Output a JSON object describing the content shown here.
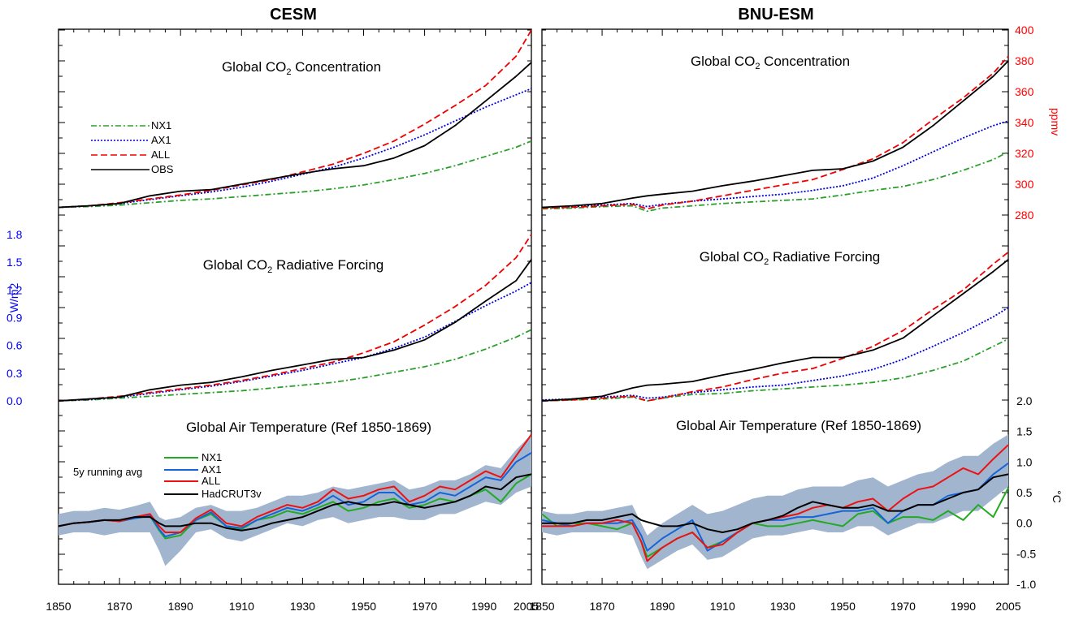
{
  "figure": {
    "column_titles": [
      "CESM",
      "BNU-ESM"
    ],
    "panel_titles": {
      "co2_prefix": "Global CO",
      "co2_sub": "2",
      "co2_suffix": " Concentration",
      "rf_prefix": "Global CO",
      "rf_sub": "2",
      "rf_suffix": " Radiative Forcing",
      "temp": "Global Air Temperature (Ref 1850-1869)"
    },
    "axis_labels": {
      "co2": "ppmv",
      "rf": "W/m2",
      "temp": "°C"
    },
    "x_ticks": [
      "1850",
      "1870",
      "1890",
      "1910",
      "1930",
      "1950",
      "1970",
      "1990",
      "2005"
    ],
    "co2_ticks": [
      "280",
      "300",
      "320",
      "340",
      "360",
      "380",
      "400"
    ],
    "rf_ticks": [
      "0.0",
      "0.3",
      "0.6",
      "0.9",
      "1.2",
      "1.5",
      "1.8"
    ],
    "temp_ticks": [
      "-1.0",
      "-0.5",
      "0.0",
      "0.5",
      "1.0",
      "1.5",
      "2.0"
    ],
    "legend_top": [
      "NX1",
      "AX1",
      "ALL",
      "OBS"
    ],
    "legend_temp": {
      "note": "5y running avg",
      "items": [
        "NX1",
        "AX1",
        "ALL",
        "HadCRUT3v"
      ]
    },
    "colors": {
      "co2_axis": "#ff0000",
      "rf_axis": "#0000ff",
      "band": "#a2b5cf",
      "NX1_top": "#2aa02a",
      "AX1_top": "#0000dd",
      "ALL_top": "#ee0000",
      "OBS_top": "#000000",
      "NX1_temp": "#22aa22",
      "AX1_temp": "#1565d8",
      "ALL_temp": "#ee1111",
      "Had_temp": "#000000"
    }
  },
  "chart_data": [
    {
      "type": "line",
      "model": "CESM",
      "variable": "Global CO2 Concentration",
      "units": "ppmv",
      "x": [
        1850,
        1860,
        1870,
        1880,
        1890,
        1900,
        1910,
        1920,
        1930,
        1940,
        1950,
        1960,
        1970,
        1980,
        1990,
        2000,
        2005
      ],
      "ylim": [
        266,
        400
      ],
      "series": [
        {
          "name": "NX1",
          "values": [
            285,
            285.5,
            286.5,
            288,
            289.5,
            290.5,
            292,
            293.5,
            295,
            297,
            299.5,
            303,
            307,
            312,
            318,
            324,
            328
          ]
        },
        {
          "name": "AX1",
          "values": [
            285,
            286,
            287.5,
            290,
            292.5,
            295,
            298,
            302,
            306.5,
            311,
            317,
            324,
            332,
            341,
            350,
            358,
            362
          ]
        },
        {
          "name": "ALL",
          "values": [
            285,
            286,
            288,
            290.5,
            293,
            296,
            299.5,
            303,
            308,
            313,
            320,
            328,
            339,
            351,
            364,
            383,
            400
          ]
        },
        {
          "name": "OBS",
          "values": [
            285,
            286,
            287.5,
            292.5,
            295.5,
            296.5,
            300,
            303.5,
            307,
            310,
            312,
            317,
            325,
            338,
            354,
            370,
            379
          ]
        }
      ]
    },
    {
      "type": "line",
      "model": "BNU-ESM",
      "variable": "Global CO2 Concentration",
      "units": "ppmv",
      "x": [
        1850,
        1860,
        1870,
        1880,
        1885,
        1890,
        1900,
        1910,
        1920,
        1930,
        1940,
        1950,
        1960,
        1970,
        1980,
        1990,
        2000,
        2005
      ],
      "ylim": [
        266,
        400
      ],
      "series": [
        {
          "name": "NX1",
          "values": [
            284,
            284.5,
            285.5,
            286,
            282.5,
            284.5,
            286,
            287.5,
            288.5,
            289.5,
            290.5,
            293,
            296,
            298.5,
            303,
            309,
            316,
            321
          ]
        },
        {
          "name": "AX1",
          "values": [
            285,
            285.5,
            286.5,
            287.5,
            285.5,
            287,
            289,
            290.5,
            292,
            293.5,
            296,
            299,
            304,
            312,
            321,
            330,
            338,
            341
          ]
        },
        {
          "name": "ALL",
          "values": [
            284.5,
            285,
            286,
            287,
            284,
            286.5,
            289,
            292.5,
            296,
            299.5,
            303,
            309.5,
            316.5,
            327,
            342,
            356,
            372,
            383
          ]
        },
        {
          "name": "OBS",
          "values": [
            285,
            286,
            287.5,
            291,
            292.5,
            293.5,
            295.5,
            299,
            302,
            305.5,
            309,
            310,
            315,
            324,
            338,
            354,
            370,
            380
          ]
        }
      ]
    },
    {
      "type": "line",
      "model": "CESM",
      "variable": "Global CO2 Radiative Forcing",
      "units": "W/m2",
      "x": [
        1850,
        1860,
        1870,
        1880,
        1890,
        1900,
        1910,
        1920,
        1930,
        1940,
        1950,
        1960,
        1970,
        1980,
        1990,
        2000,
        2005
      ],
      "ylim": [
        0,
        1.8
      ],
      "series": [
        {
          "name": "NX1",
          "values": [
            0,
            0.01,
            0.03,
            0.05,
            0.07,
            0.09,
            0.11,
            0.14,
            0.17,
            0.2,
            0.25,
            0.31,
            0.37,
            0.45,
            0.56,
            0.69,
            0.77
          ]
        },
        {
          "name": "AX1",
          "values": [
            0,
            0.015,
            0.04,
            0.08,
            0.12,
            0.16,
            0.21,
            0.27,
            0.33,
            0.4,
            0.47,
            0.57,
            0.69,
            0.86,
            1.03,
            1.19,
            1.28
          ]
        },
        {
          "name": "ALL",
          "values": [
            0,
            0.02,
            0.05,
            0.09,
            0.13,
            0.17,
            0.22,
            0.28,
            0.35,
            0.42,
            0.52,
            0.64,
            0.82,
            1.02,
            1.25,
            1.55,
            1.8
          ]
        },
        {
          "name": "OBS",
          "values": [
            0,
            0.02,
            0.04,
            0.12,
            0.17,
            0.2,
            0.26,
            0.33,
            0.39,
            0.45,
            0.47,
            0.55,
            0.66,
            0.85,
            1.08,
            1.3,
            1.53
          ]
        }
      ]
    },
    {
      "type": "line",
      "model": "BNU-ESM",
      "variable": "Global CO2 Radiative Forcing",
      "units": "W/m2",
      "x": [
        1850,
        1860,
        1870,
        1880,
        1885,
        1890,
        1900,
        1910,
        1920,
        1930,
        1940,
        1950,
        1960,
        1970,
        1980,
        1990,
        2000,
        2005
      ],
      "ylim": [
        0,
        1.8
      ],
      "series": [
        {
          "name": "NX1",
          "values": [
            0,
            0.01,
            0.02,
            0.04,
            0.0,
            0.03,
            0.07,
            0.08,
            0.11,
            0.13,
            0.15,
            0.17,
            0.2,
            0.25,
            0.33,
            0.43,
            0.59,
            0.67
          ]
        },
        {
          "name": "AX1",
          "values": [
            0.01,
            0.02,
            0.04,
            0.06,
            0.03,
            0.04,
            0.09,
            0.12,
            0.15,
            0.17,
            0.22,
            0.27,
            0.34,
            0.45,
            0.59,
            0.74,
            0.91,
            1.01
          ]
        },
        {
          "name": "ALL",
          "values": [
            0,
            0.01,
            0.03,
            0.05,
            0.0,
            0.03,
            0.1,
            0.15,
            0.23,
            0.3,
            0.35,
            0.46,
            0.59,
            0.76,
            0.99,
            1.2,
            1.48,
            1.61
          ]
        },
        {
          "name": "OBS",
          "values": [
            0,
            0.02,
            0.05,
            0.14,
            0.17,
            0.18,
            0.21,
            0.28,
            0.34,
            0.41,
            0.47,
            0.47,
            0.55,
            0.68,
            0.92,
            1.16,
            1.4,
            1.53
          ]
        }
      ]
    },
    {
      "type": "line",
      "model": "CESM",
      "variable": "Global Air Temperature (Ref 1850-1869)",
      "units": "°C",
      "x": [
        1850,
        1855,
        1860,
        1865,
        1870,
        1875,
        1880,
        1883,
        1885,
        1890,
        1895,
        1900,
        1905,
        1910,
        1915,
        1920,
        1925,
        1930,
        1935,
        1940,
        1945,
        1950,
        1955,
        1960,
        1965,
        1970,
        1975,
        1980,
        1985,
        1990,
        1995,
        2000,
        2005
      ],
      "ylim": [
        -1.0,
        2.0
      ],
      "series": [
        {
          "name": "NX1",
          "values": [
            -0.05,
            0,
            0.02,
            0.05,
            0.03,
            0.08,
            0.12,
            -0.12,
            -0.25,
            -0.2,
            0.05,
            0.15,
            -0.05,
            -0.1,
            0.05,
            0.1,
            0.2,
            0.15,
            0.25,
            0.35,
            0.2,
            0.25,
            0.35,
            0.4,
            0.25,
            0.3,
            0.4,
            0.35,
            0.45,
            0.55,
            0.35,
            0.65,
            0.8
          ]
        },
        {
          "name": "AX1",
          "values": [
            -0.05,
            0,
            0.02,
            0.05,
            0.03,
            0.08,
            0.12,
            -0.1,
            -0.22,
            -0.15,
            0.05,
            0.18,
            -0.05,
            -0.08,
            0.05,
            0.15,
            0.25,
            0.2,
            0.3,
            0.45,
            0.3,
            0.35,
            0.5,
            0.5,
            0.3,
            0.35,
            0.5,
            0.45,
            0.6,
            0.75,
            0.7,
            1.0,
            1.15
          ]
        },
        {
          "name": "ALL",
          "values": [
            -0.05,
            0,
            0.02,
            0.05,
            0.03,
            0.1,
            0.15,
            -0.05,
            -0.15,
            -0.15,
            0.08,
            0.22,
            0,
            -0.05,
            0.1,
            0.2,
            0.3,
            0.25,
            0.35,
            0.55,
            0.4,
            0.45,
            0.55,
            0.6,
            0.35,
            0.45,
            0.6,
            0.55,
            0.7,
            0.85,
            0.75,
            1.1,
            1.45
          ]
        },
        {
          "name": "HadCRUT3v",
          "values": [
            -0.05,
            0,
            0.02,
            0.05,
            0.05,
            0.1,
            0.1,
            0,
            -0.05,
            -0.05,
            0,
            0,
            -0.08,
            -0.12,
            -0.08,
            0,
            0.05,
            0.1,
            0.2,
            0.3,
            0.35,
            0.3,
            0.3,
            0.35,
            0.3,
            0.25,
            0.3,
            0.35,
            0.45,
            0.6,
            0.55,
            0.75,
            0.8
          ]
        },
        {
          "name": "band_upper",
          "values": [
            0.15,
            0.2,
            0.2,
            0.25,
            0.22,
            0.28,
            0.35,
            0.1,
            0.05,
            0.1,
            0.25,
            0.3,
            0.2,
            0.2,
            0.25,
            0.35,
            0.45,
            0.45,
            0.5,
            0.6,
            0.55,
            0.6,
            0.65,
            0.7,
            0.55,
            0.6,
            0.7,
            0.7,
            0.8,
            0.95,
            0.9,
            1.2,
            1.45
          ]
        },
        {
          "name": "band_lower",
          "values": [
            -0.2,
            -0.15,
            -0.15,
            -0.2,
            -0.15,
            -0.15,
            -0.15,
            -0.45,
            -0.7,
            -0.45,
            -0.15,
            -0.1,
            -0.25,
            -0.3,
            -0.2,
            -0.1,
            0,
            -0.05,
            0.05,
            0.1,
            0,
            0.05,
            0.1,
            0.1,
            0.05,
            0.05,
            0.15,
            0.15,
            0.25,
            0.35,
            0.3,
            0.5,
            0.6
          ]
        }
      ]
    },
    {
      "type": "line",
      "model": "BNU-ESM",
      "variable": "Global Air Temperature (Ref 1850-1869)",
      "units": "°C",
      "x": [
        1850,
        1855,
        1860,
        1865,
        1870,
        1875,
        1880,
        1883,
        1885,
        1890,
        1895,
        1900,
        1905,
        1910,
        1915,
        1920,
        1925,
        1930,
        1935,
        1940,
        1945,
        1950,
        1955,
        1960,
        1965,
        1970,
        1975,
        1980,
        1985,
        1990,
        1995,
        2000,
        2005
      ],
      "ylim": [
        -1.0,
        2.0
      ],
      "series": [
        {
          "name": "NX1",
          "values": [
            0.15,
            -0.05,
            0,
            0,
            -0.05,
            -0.1,
            0,
            -0.3,
            -0.55,
            -0.4,
            -0.25,
            -0.15,
            -0.4,
            -0.3,
            -0.15,
            0,
            -0.05,
            -0.05,
            0,
            0.05,
            0,
            -0.05,
            0.15,
            0.2,
            0,
            0.1,
            0.1,
            0.05,
            0.2,
            0.05,
            0.3,
            0.1,
            0.58
          ]
        },
        {
          "name": "AX1",
          "values": [
            0.05,
            0,
            -0.05,
            0,
            0,
            0,
            0.05,
            -0.2,
            -0.45,
            -0.25,
            -0.1,
            0.05,
            -0.45,
            -0.3,
            -0.15,
            0,
            0.05,
            0.05,
            0.1,
            0.1,
            0.15,
            0.2,
            0.2,
            0.25,
            0,
            0.2,
            0.3,
            0.3,
            0.45,
            0.5,
            0.55,
            0.8,
            0.98
          ]
        },
        {
          "name": "ALL",
          "values": [
            -0.05,
            -0.05,
            -0.05,
            0,
            0,
            0.05,
            0,
            -0.3,
            -0.62,
            -0.4,
            -0.25,
            -0.15,
            -0.4,
            -0.35,
            -0.15,
            0,
            0.05,
            0.1,
            0.15,
            0.25,
            0.3,
            0.25,
            0.35,
            0.4,
            0.2,
            0.4,
            0.55,
            0.6,
            0.75,
            0.9,
            0.8,
            1.05,
            1.28
          ]
        },
        {
          "name": "HadCRUT3v",
          "values": [
            0,
            0,
            0,
            0.05,
            0.05,
            0.1,
            0.15,
            0.05,
            0.02,
            -0.05,
            -0.05,
            0,
            -0.1,
            -0.15,
            -0.1,
            0,
            0.05,
            0.12,
            0.25,
            0.35,
            0.3,
            0.25,
            0.25,
            0.3,
            0.2,
            0.2,
            0.3,
            0.3,
            0.4,
            0.5,
            0.55,
            0.75,
            0.8
          ]
        },
        {
          "name": "band_upper",
          "values": [
            0.2,
            0.15,
            0.15,
            0.2,
            0.2,
            0.25,
            0.3,
            0,
            -0.2,
            0,
            0.15,
            0.3,
            0.15,
            0.2,
            0.3,
            0.4,
            0.45,
            0.45,
            0.55,
            0.6,
            0.6,
            0.6,
            0.7,
            0.75,
            0.6,
            0.7,
            0.8,
            0.85,
            1,
            1.1,
            1.1,
            1.3,
            1.45
          ]
        },
        {
          "name": "band_lower",
          "values": [
            -0.15,
            -0.2,
            -0.15,
            -0.15,
            -0.15,
            -0.15,
            -0.2,
            -0.55,
            -0.75,
            -0.6,
            -0.45,
            -0.35,
            -0.6,
            -0.55,
            -0.4,
            -0.25,
            -0.2,
            -0.2,
            -0.15,
            -0.1,
            -0.15,
            -0.15,
            -0.05,
            -0.05,
            -0.2,
            -0.1,
            0,
            0,
            0.1,
            0.2,
            0.2,
            0.4,
            0.6
          ]
        }
      ]
    }
  ]
}
